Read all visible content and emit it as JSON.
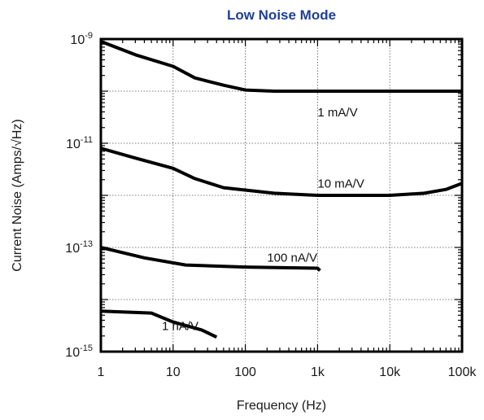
{
  "chart_data": {
    "type": "line",
    "title": "Low Noise Mode",
    "xlabel": "Frequency  (Hz)",
    "ylabel": "Current Noise  (Amps/√Hz)",
    "x_scale": "log",
    "y_scale": "log",
    "xlim": [
      1,
      100000
    ],
    "ylim": [
      1e-15,
      1e-09
    ],
    "grid": true,
    "x_ticks": [
      {
        "value": 1,
        "label": "1"
      },
      {
        "value": 10,
        "label": "10"
      },
      {
        "value": 100,
        "label": "100"
      },
      {
        "value": 1000,
        "label": "1k"
      },
      {
        "value": 10000,
        "label": "10k"
      },
      {
        "value": 100000,
        "label": "100k"
      }
    ],
    "y_ticks": [
      {
        "value": 1e-09,
        "base": "10",
        "exp": "-9"
      },
      {
        "value": 1e-11,
        "base": "10",
        "exp": "-11"
      },
      {
        "value": 1e-13,
        "base": "10",
        "exp": "-13"
      },
      {
        "value": 1e-15,
        "base": "10",
        "exp": "-15"
      }
    ],
    "series": [
      {
        "name": "1 mA/V",
        "x": [
          1,
          3,
          10,
          20,
          50,
          100,
          250,
          1000,
          100000
        ],
        "y": [
          9e-10,
          5e-10,
          3e-10,
          1.8e-10,
          1.3e-10,
          1.05e-10,
          1e-10,
          1e-10,
          1e-10
        ]
      },
      {
        "name": "10 mA/V",
        "x": [
          1,
          3,
          10,
          20,
          50,
          250,
          1000,
          10000,
          30000,
          60000,
          100000
        ],
        "y": [
          8e-12,
          5.2e-12,
          3.3e-12,
          2.1e-12,
          1.4e-12,
          1.1e-12,
          1e-12,
          1e-12,
          1.1e-12,
          1.3e-12,
          1.7e-12
        ]
      },
      {
        "name": "100 nA/V",
        "x": [
          1,
          4,
          15,
          100,
          1000,
          1080
        ],
        "y": [
          1e-13,
          6.3e-14,
          4.6e-14,
          4.2e-14,
          4e-14,
          3.6e-14
        ]
      },
      {
        "name": "1 nA/V",
        "x": [
          1,
          5,
          10,
          25,
          40
        ],
        "y": [
          6e-15,
          5.5e-15,
          3.7e-15,
          2.6e-15,
          1.9e-15
        ]
      }
    ]
  }
}
